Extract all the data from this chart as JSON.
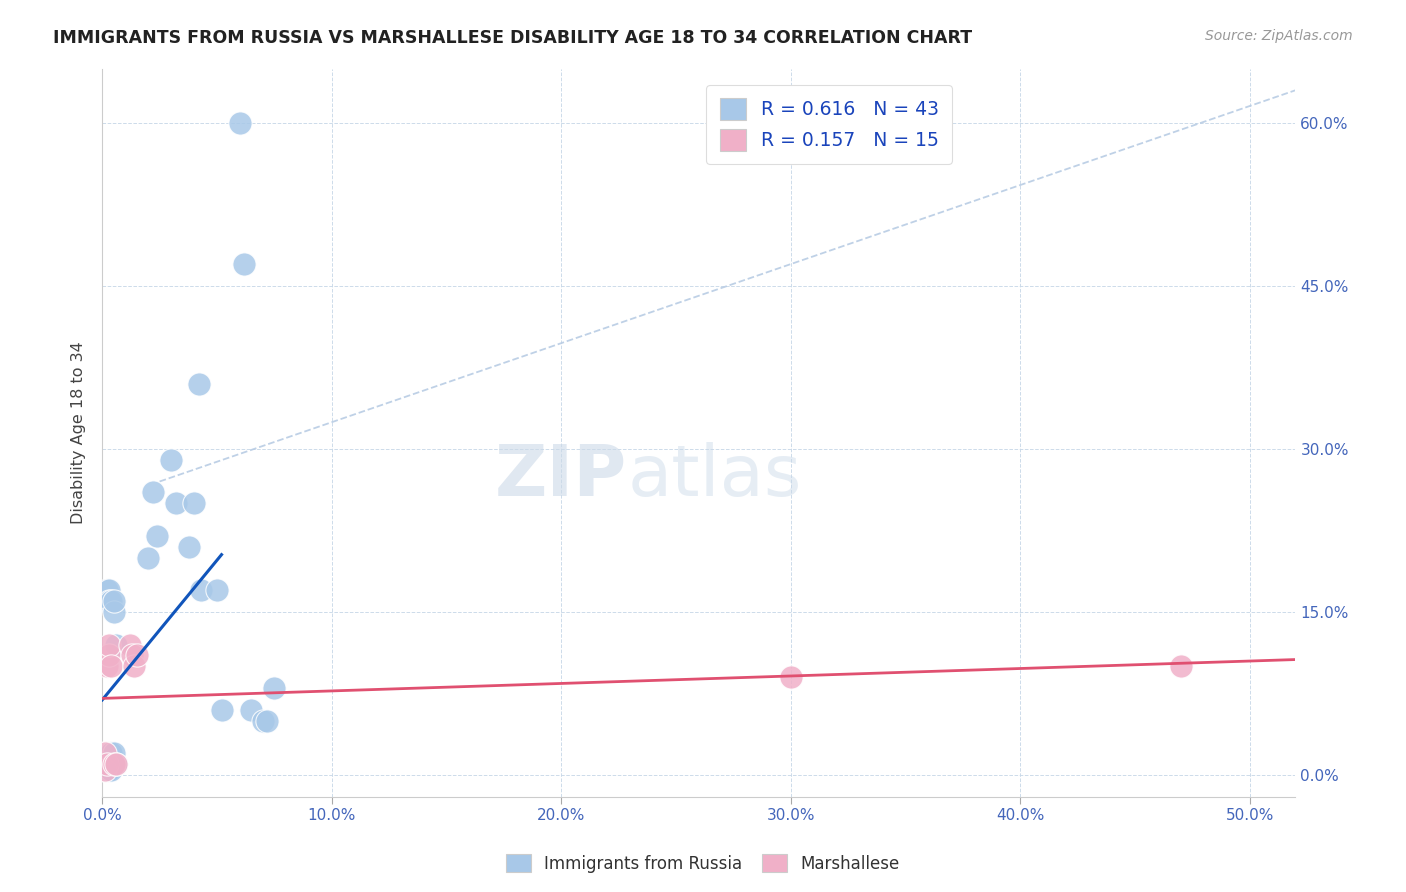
{
  "title": "IMMIGRANTS FROM RUSSIA VS MARSHALLESE DISABILITY AGE 18 TO 34 CORRELATION CHART",
  "source": "Source: ZipAtlas.com",
  "xlabel_ticks": [
    "0.0%",
    "10.0%",
    "20.0%",
    "30.0%",
    "40.0%",
    "50.0%"
  ],
  "xlabel_tick_vals": [
    0.0,
    0.1,
    0.2,
    0.3,
    0.4,
    0.5
  ],
  "ylabel": "Disability Age 18 to 34",
  "ylabel_ticks": [
    "0.0%",
    "15.0%",
    "30.0%",
    "45.0%",
    "60.0%"
  ],
  "ylabel_tick_vals": [
    0.0,
    0.15,
    0.3,
    0.45,
    0.6
  ],
  "xmin": 0.0,
  "xmax": 0.52,
  "ymin": -0.02,
  "ymax": 0.65,
  "russia_R": 0.616,
  "russia_N": 43,
  "marshallese_R": 0.157,
  "marshallese_N": 15,
  "russia_color": "#a8c8e8",
  "russia_line_color": "#1155bb",
  "marshallese_color": "#f0b0c8",
  "marshallese_line_color": "#e05070",
  "russia_scatter_x": [
    0.001,
    0.001,
    0.001,
    0.002,
    0.002,
    0.002,
    0.002,
    0.002,
    0.002,
    0.003,
    0.003,
    0.003,
    0.003,
    0.003,
    0.003,
    0.003,
    0.004,
    0.004,
    0.004,
    0.004,
    0.004,
    0.005,
    0.005,
    0.005,
    0.006,
    0.006,
    0.02,
    0.022,
    0.024,
    0.03,
    0.032,
    0.038,
    0.04,
    0.042,
    0.043,
    0.05,
    0.052,
    0.06,
    0.062,
    0.065,
    0.07,
    0.072,
    0.075
  ],
  "russia_scatter_y": [
    0.02,
    0.01,
    0.005,
    0.01,
    0.02,
    0.005,
    0.01,
    0.16,
    0.17,
    0.01,
    0.02,
    0.005,
    0.01,
    0.17,
    0.16,
    0.02,
    0.01,
    0.02,
    0.005,
    0.16,
    0.02,
    0.15,
    0.16,
    0.02,
    0.01,
    0.12,
    0.2,
    0.26,
    0.22,
    0.29,
    0.25,
    0.21,
    0.25,
    0.36,
    0.17,
    0.17,
    0.06,
    0.6,
    0.47,
    0.06,
    0.05,
    0.05,
    0.08
  ],
  "marshallese_scatter_x": [
    0.001,
    0.001,
    0.002,
    0.002,
    0.003,
    0.003,
    0.004,
    0.005,
    0.006,
    0.012,
    0.013,
    0.014,
    0.015,
    0.3,
    0.47
  ],
  "marshallese_scatter_y": [
    0.02,
    0.005,
    0.01,
    0.1,
    0.11,
    0.12,
    0.1,
    0.01,
    0.01,
    0.12,
    0.11,
    0.1,
    0.11,
    0.09,
    0.1
  ],
  "watermark_zip": "ZIP",
  "watermark_atlas": "atlas",
  "trendline_dashed_color": "#b8cce4"
}
